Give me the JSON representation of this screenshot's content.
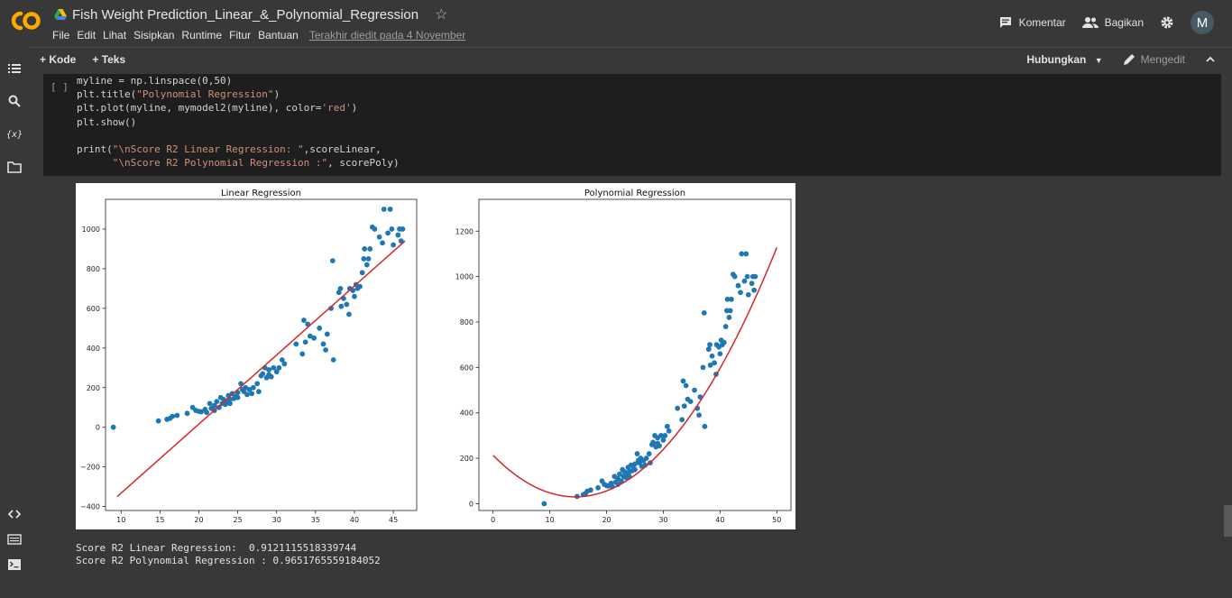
{
  "app": {
    "document_title": "Fish Weight Prediction_Linear_&_Polynomial_Regression",
    "menu": [
      "File",
      "Edit",
      "Lihat",
      "Sisipkan",
      "Runtime",
      "Fitur",
      "Bantuan"
    ],
    "last_edited": "Terakhir diedit pada 4 November",
    "comment_label": "Komentar",
    "share_label": "Bagikan",
    "avatar_initial": "M"
  },
  "toolbar": {
    "add_code": "Kode",
    "add_text": "Teks",
    "connect": "Hubungkan",
    "editing": "Mengedit"
  },
  "cell": {
    "run_indicator": "[ ]",
    "code_lines": [
      "myline = np.linspace(0,50)",
      "plt.title(\"Polynomial Regression\")",
      "plt.plot(myline, mymodel2(myline), color='red')",
      "plt.show()",
      "",
      "print(\"\\nScore R2 Linear Regression: \",scoreLinear,",
      "      \"\\nScore R2 Polynomial Regression :\", scorePoly)"
    ]
  },
  "output": {
    "line1": "Score R2 Linear Regression:  0.9121115518339744",
    "line2": "Score R2 Polynomial Regression : 0.9651765559184052"
  },
  "colors": {
    "point": "#1f77b4",
    "line": "#d62728"
  },
  "chart_data": [
    {
      "type": "scatter",
      "title": "Linear Regression",
      "xlim": [
        8,
        48
      ],
      "ylim": [
        -420,
        1150
      ],
      "xticks": [
        10,
        15,
        20,
        25,
        30,
        35,
        40,
        45
      ],
      "yticks": [
        -400,
        -200,
        0,
        200,
        400,
        600,
        800,
        1000
      ],
      "xtick_labels": [
        "10",
        "15",
        "20",
        "25",
        "30",
        "35",
        "40",
        "45"
      ],
      "ytick_labels": [
        "−400",
        "−200",
        "0",
        "200",
        "400",
        "600",
        "800",
        "1000"
      ],
      "line": {
        "x": [
          9.5,
          46.5
        ],
        "y": [
          -350,
          940
        ]
      },
      "points": [
        [
          9,
          0
        ],
        [
          14.8,
          32
        ],
        [
          15.9,
          40
        ],
        [
          16.3,
          45
        ],
        [
          16.6,
          55
        ],
        [
          17.2,
          60
        ],
        [
          18.5,
          70
        ],
        [
          19.2,
          100
        ],
        [
          19.6,
          85
        ],
        [
          20,
          80
        ],
        [
          20.3,
          78
        ],
        [
          20.8,
          90
        ],
        [
          21,
          75
        ],
        [
          21.4,
          120
        ],
        [
          21.6,
          95
        ],
        [
          22,
          110
        ],
        [
          22,
          85
        ],
        [
          22.3,
          130
        ],
        [
          22.6,
          100
        ],
        [
          22.8,
          150
        ],
        [
          23,
          120
        ],
        [
          23.2,
          140
        ],
        [
          23.4,
          115
        ],
        [
          23.6,
          130
        ],
        [
          23.8,
          160
        ],
        [
          24,
          140
        ],
        [
          24,
          120
        ],
        [
          24.3,
          170
        ],
        [
          24.5,
          145
        ],
        [
          24.8,
          155
        ],
        [
          25,
          175
        ],
        [
          25,
          150
        ],
        [
          25.4,
          220
        ],
        [
          25.6,
          190
        ],
        [
          25.8,
          180
        ],
        [
          26,
          200
        ],
        [
          26.2,
          165
        ],
        [
          26.5,
          190
        ],
        [
          26.8,
          170
        ],
        [
          27,
          200
        ],
        [
          27.5,
          220
        ],
        [
          27.7,
          180
        ],
        [
          28,
          260
        ],
        [
          28.2,
          270
        ],
        [
          28.5,
          300
        ],
        [
          28.7,
          250
        ],
        [
          29,
          290
        ],
        [
          29,
          265
        ],
        [
          29.3,
          255
        ],
        [
          29.6,
          300
        ],
        [
          30,
          280
        ],
        [
          30.3,
          300
        ],
        [
          30.7,
          340
        ],
        [
          31,
          320
        ],
        [
          32.5,
          420
        ],
        [
          33.3,
          370
        ],
        [
          33.5,
          540
        ],
        [
          33.7,
          430
        ],
        [
          34,
          520
        ],
        [
          34.3,
          460
        ],
        [
          34.8,
          450
        ],
        [
          35.5,
          500
        ],
        [
          36,
          420
        ],
        [
          36.3,
          390
        ],
        [
          36.5,
          470
        ],
        [
          37,
          600
        ],
        [
          37.2,
          840
        ],
        [
          37.3,
          340
        ],
        [
          38,
          680
        ],
        [
          38.2,
          700
        ],
        [
          38.3,
          610
        ],
        [
          38.6,
          650
        ],
        [
          39,
          620
        ],
        [
          39.3,
          570
        ],
        [
          39.4,
          700
        ],
        [
          39.8,
          690
        ],
        [
          40,
          660
        ],
        [
          40.2,
          720
        ],
        [
          40.4,
          700
        ],
        [
          40.7,
          710
        ],
        [
          41,
          780
        ],
        [
          41.2,
          850
        ],
        [
          41.3,
          900
        ],
        [
          41.6,
          820
        ],
        [
          41.8,
          850
        ],
        [
          42,
          900
        ],
        [
          42.3,
          1010
        ],
        [
          42.6,
          1000
        ],
        [
          43.2,
          960
        ],
        [
          43.6,
          930
        ],
        [
          43.8,
          1100
        ],
        [
          44.3,
          980
        ],
        [
          44.6,
          1100
        ],
        [
          44.8,
          1000
        ],
        [
          45,
          920
        ],
        [
          45.6,
          970
        ],
        [
          45.8,
          1000
        ],
        [
          46,
          940
        ],
        [
          46.2,
          1000
        ]
      ]
    },
    {
      "type": "scatter",
      "title": "Polynomial Regression",
      "xlim": [
        -2.5,
        52.5
      ],
      "ylim": [
        -30,
        1340
      ],
      "xticks": [
        0,
        10,
        20,
        30,
        40,
        50
      ],
      "yticks": [
        0,
        200,
        400,
        600,
        800,
        1000,
        1200
      ],
      "xtick_labels": [
        "0",
        "10",
        "20",
        "30",
        "40",
        "50"
      ],
      "ytick_labels": [
        "0",
        "200",
        "400",
        "600",
        "800",
        "1000",
        "1200"
      ],
      "curve": {
        "vertex_x": 14.5,
        "vertex_y": 30,
        "a": 0.8706,
        "x_range": [
          0,
          50
        ]
      },
      "points": [
        [
          9,
          0
        ],
        [
          14.8,
          32
        ],
        [
          15.9,
          40
        ],
        [
          16.3,
          45
        ],
        [
          16.6,
          55
        ],
        [
          17.2,
          60
        ],
        [
          18.5,
          70
        ],
        [
          19.2,
          100
        ],
        [
          19.6,
          85
        ],
        [
          20,
          80
        ],
        [
          20.3,
          78
        ],
        [
          20.8,
          90
        ],
        [
          21,
          75
        ],
        [
          21.4,
          120
        ],
        [
          21.6,
          95
        ],
        [
          22,
          110
        ],
        [
          22,
          85
        ],
        [
          22.3,
          130
        ],
        [
          22.6,
          100
        ],
        [
          22.8,
          150
        ],
        [
          23,
          120
        ],
        [
          23.2,
          140
        ],
        [
          23.4,
          115
        ],
        [
          23.6,
          130
        ],
        [
          23.8,
          160
        ],
        [
          24,
          140
        ],
        [
          24,
          120
        ],
        [
          24.3,
          170
        ],
        [
          24.5,
          145
        ],
        [
          24.8,
          155
        ],
        [
          25,
          175
        ],
        [
          25,
          150
        ],
        [
          25.4,
          220
        ],
        [
          25.6,
          190
        ],
        [
          25.8,
          180
        ],
        [
          26,
          200
        ],
        [
          26.2,
          165
        ],
        [
          26.5,
          190
        ],
        [
          26.8,
          170
        ],
        [
          27,
          200
        ],
        [
          27.5,
          220
        ],
        [
          27.7,
          180
        ],
        [
          28,
          260
        ],
        [
          28.2,
          270
        ],
        [
          28.5,
          300
        ],
        [
          28.7,
          250
        ],
        [
          29,
          290
        ],
        [
          29,
          265
        ],
        [
          29.3,
          255
        ],
        [
          29.6,
          300
        ],
        [
          30,
          280
        ],
        [
          30.3,
          300
        ],
        [
          30.7,
          340
        ],
        [
          31,
          320
        ],
        [
          32.5,
          420
        ],
        [
          33.3,
          370
        ],
        [
          33.5,
          540
        ],
        [
          33.7,
          430
        ],
        [
          34,
          520
        ],
        [
          34.3,
          460
        ],
        [
          34.8,
          450
        ],
        [
          35.5,
          500
        ],
        [
          36,
          420
        ],
        [
          36.3,
          390
        ],
        [
          36.5,
          470
        ],
        [
          37,
          600
        ],
        [
          37.2,
          840
        ],
        [
          37.3,
          340
        ],
        [
          38,
          680
        ],
        [
          38.2,
          700
        ],
        [
          38.3,
          610
        ],
        [
          38.6,
          650
        ],
        [
          39,
          620
        ],
        [
          39.3,
          570
        ],
        [
          39.4,
          700
        ],
        [
          39.8,
          690
        ],
        [
          40,
          660
        ],
        [
          40.2,
          720
        ],
        [
          40.4,
          700
        ],
        [
          40.7,
          710
        ],
        [
          41,
          780
        ],
        [
          41.2,
          850
        ],
        [
          41.3,
          900
        ],
        [
          41.6,
          820
        ],
        [
          41.8,
          850
        ],
        [
          42,
          900
        ],
        [
          42.3,
          1010
        ],
        [
          42.6,
          1000
        ],
        [
          43.2,
          960
        ],
        [
          43.6,
          930
        ],
        [
          43.8,
          1100
        ],
        [
          44.3,
          980
        ],
        [
          44.6,
          1100
        ],
        [
          44.8,
          1000
        ],
        [
          45,
          920
        ],
        [
          45.6,
          970
        ],
        [
          45.8,
          1000
        ],
        [
          46,
          940
        ],
        [
          46.2,
          1000
        ]
      ]
    }
  ]
}
